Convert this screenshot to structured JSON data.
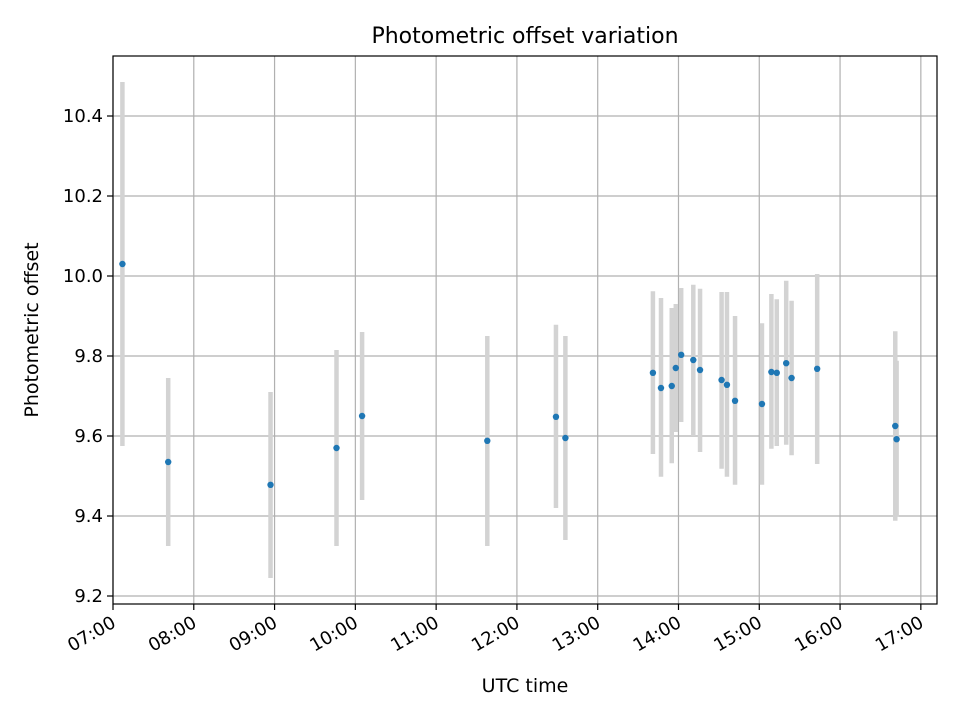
{
  "chart_data": {
    "type": "scatter",
    "title": "Photometric offset variation",
    "xlabel": "UTC time",
    "ylabel": "Photometric offset",
    "xlim": [
      "07:00",
      "17:12"
    ],
    "ylim": [
      9.18,
      10.55
    ],
    "grid": true,
    "legend": "none",
    "x_tick_labels": [
      "07:00",
      "08:00",
      "09:00",
      "10:00",
      "11:00",
      "12:00",
      "13:00",
      "14:00",
      "15:00",
      "16:00",
      "17:00"
    ],
    "y_tick_labels": [
      "9.2",
      "9.4",
      "9.6",
      "9.8",
      "10.0",
      "10.2",
      "10.4"
    ],
    "y_ticks": [
      9.2,
      9.4,
      9.6,
      9.8,
      10.0,
      10.2,
      10.4
    ],
    "colors": {
      "marker": "#1f77b4",
      "errorbar": "#d3d3d3"
    },
    "series": [
      {
        "points": [
          {
            "x": "07:07",
            "y": 10.03,
            "ylow": 9.575,
            "yhigh": 10.485
          },
          {
            "x": "07:41",
            "y": 9.535,
            "ylow": 9.325,
            "yhigh": 9.745
          },
          {
            "x": "08:57",
            "y": 9.478,
            "ylow": 9.245,
            "yhigh": 9.71
          },
          {
            "x": "09:46",
            "y": 9.57,
            "ylow": 9.325,
            "yhigh": 9.815
          },
          {
            "x": "10:05",
            "y": 9.65,
            "ylow": 9.44,
            "yhigh": 9.86
          },
          {
            "x": "11:38",
            "y": 9.588,
            "ylow": 9.325,
            "yhigh": 9.85
          },
          {
            "x": "12:29",
            "y": 9.648,
            "ylow": 9.42,
            "yhigh": 9.878
          },
          {
            "x": "12:36",
            "y": 9.595,
            "ylow": 9.34,
            "yhigh": 9.85
          },
          {
            "x": "13:41",
            "y": 9.758,
            "ylow": 9.555,
            "yhigh": 9.962
          },
          {
            "x": "13:47",
            "y": 9.72,
            "ylow": 9.498,
            "yhigh": 9.945
          },
          {
            "x": "13:55",
            "y": 9.725,
            "ylow": 9.532,
            "yhigh": 9.92
          },
          {
            "x": "13:58",
            "y": 9.77,
            "ylow": 9.61,
            "yhigh": 9.93
          },
          {
            "x": "14:02",
            "y": 9.803,
            "ylow": 9.635,
            "yhigh": 9.97
          },
          {
            "x": "14:11",
            "y": 9.79,
            "ylow": 9.6,
            "yhigh": 9.978
          },
          {
            "x": "14:16",
            "y": 9.765,
            "ylow": 9.56,
            "yhigh": 9.968
          },
          {
            "x": "14:32",
            "y": 9.74,
            "ylow": 9.518,
            "yhigh": 9.96
          },
          {
            "x": "14:36",
            "y": 9.728,
            "ylow": 9.498,
            "yhigh": 9.96
          },
          {
            "x": "14:42",
            "y": 9.688,
            "ylow": 9.478,
            "yhigh": 9.9
          },
          {
            "x": "15:02",
            "y": 9.68,
            "ylow": 9.478,
            "yhigh": 9.882
          },
          {
            "x": "15:09",
            "y": 9.76,
            "ylow": 9.568,
            "yhigh": 9.955
          },
          {
            "x": "15:13",
            "y": 9.758,
            "ylow": 9.575,
            "yhigh": 9.942
          },
          {
            "x": "15:20",
            "y": 9.782,
            "ylow": 9.578,
            "yhigh": 9.988
          },
          {
            "x": "15:24",
            "y": 9.745,
            "ylow": 9.552,
            "yhigh": 9.938
          },
          {
            "x": "15:43",
            "y": 9.768,
            "ylow": 9.53,
            "yhigh": 10.005
          },
          {
            "x": "16:41",
            "y": 9.625,
            "ylow": 9.388,
            "yhigh": 9.862
          },
          {
            "x": "16:42",
            "y": 9.592,
            "ylow": 9.398,
            "yhigh": 9.788
          }
        ]
      }
    ]
  }
}
